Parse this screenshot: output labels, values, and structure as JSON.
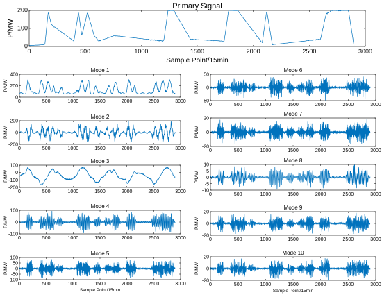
{
  "chart_data": [
    {
      "type": "line",
      "title": "Primary Signal",
      "xlabel": "Sample Point/15min",
      "ylabel": "P/MW",
      "xlim": [
        0,
        3000
      ],
      "ylim": [
        0,
        200
      ],
      "xticks": [
        0,
        500,
        1000,
        1500,
        2000,
        2500,
        3000
      ],
      "yticks": [
        0,
        100,
        200
      ],
      "series": [
        {
          "x": [
            0,
            140,
            170,
            200,
            400,
            440,
            470,
            520,
            580,
            620,
            760,
            1200,
            1240,
            1290,
            1440,
            1740,
            1780,
            1860,
            2080,
            2120,
            2170,
            2600,
            2650,
            2700,
            2850,
            2900
          ],
          "values": [
            5,
            10,
            190,
            120,
            30,
            190,
            60,
            190,
            60,
            30,
            60,
            30,
            200,
            200,
            40,
            30,
            200,
            200,
            20,
            200,
            10,
            40,
            180,
            200,
            200,
            0
          ]
        }
      ]
    },
    {
      "type": "line",
      "title": "Mode 1",
      "xlabel": "",
      "ylabel": "P/MW",
      "xlim": [
        0,
        3000
      ],
      "ylim": [
        0,
        400
      ],
      "xticks": [
        0,
        500,
        1000,
        1500,
        2000,
        2500,
        3000
      ],
      "yticks": [
        0,
        200,
        400
      ]
    },
    {
      "type": "line",
      "title": "Mode 2",
      "xlabel": "",
      "ylabel": "P/MW",
      "xlim": [
        0,
        3000
      ],
      "ylim": [
        -200,
        200
      ],
      "xticks": [
        0,
        500,
        1000,
        1500,
        2000,
        2500,
        3000
      ],
      "yticks": [
        -200,
        0,
        200
      ]
    },
    {
      "type": "line",
      "title": "Mode 3",
      "xlabel": "",
      "ylabel": "P/MW",
      "xlim": [
        0,
        3000
      ],
      "ylim": [
        -200,
        100
      ],
      "xticks": [
        0,
        500,
        1000,
        1500,
        2000,
        2500,
        3000
      ],
      "yticks": [
        -200,
        -100,
        0,
        100
      ]
    },
    {
      "type": "line",
      "title": "Mode 4",
      "xlabel": "",
      "ylabel": "P/MW",
      "xlim": [
        0,
        3000
      ],
      "ylim": [
        -100,
        100
      ],
      "xticks": [
        0,
        500,
        1000,
        1500,
        2000,
        2500,
        3000
      ],
      "yticks": [
        -100,
        0,
        100
      ]
    },
    {
      "type": "line",
      "title": "Mode 5",
      "xlabel": "Sample Point/15min",
      "ylabel": "P/MW",
      "xlim": [
        0,
        3000
      ],
      "ylim": [
        -100,
        100
      ],
      "xticks": [
        0,
        500,
        1000,
        1500,
        2000,
        2500,
        3000
      ],
      "yticks": [
        -100,
        -50,
        0,
        50,
        100
      ]
    },
    {
      "type": "line",
      "title": "Mode 6",
      "xlabel": "",
      "ylabel": "P/MW",
      "xlim": [
        0,
        3000
      ],
      "ylim": [
        -50,
        50
      ],
      "xticks": [
        0,
        500,
        1000,
        1500,
        2000,
        2500,
        3000
      ],
      "yticks": [
        -50,
        0,
        50
      ]
    },
    {
      "type": "line",
      "title": "Mode 7",
      "xlabel": "",
      "ylabel": "P/MW",
      "xlim": [
        0,
        3000
      ],
      "ylim": [
        -20,
        20
      ],
      "xticks": [
        0,
        500,
        1000,
        1500,
        2000,
        2500,
        3000
      ],
      "yticks": [
        -20,
        0,
        20
      ]
    },
    {
      "type": "line",
      "title": "Mode 8",
      "xlabel": "",
      "ylabel": "P/MW",
      "xlim": [
        0,
        3000
      ],
      "ylim": [
        -10,
        10
      ],
      "xticks": [
        0,
        500,
        1000,
        1500,
        2000,
        2500,
        3000
      ],
      "yticks": [
        -10,
        -5,
        0,
        5,
        10
      ]
    },
    {
      "type": "line",
      "title": "Mode 9",
      "xlabel": "",
      "ylabel": "P/MW",
      "xlim": [
        0,
        3000
      ],
      "ylim": [
        -20,
        20
      ],
      "xticks": [
        0,
        500,
        1000,
        1500,
        2000,
        2500,
        3000
      ],
      "yticks": [
        -20,
        0,
        20
      ]
    },
    {
      "type": "line",
      "title": "Mode 10",
      "xlabel": "Sample Point/15min",
      "ylabel": "P/MW",
      "xlim": [
        0,
        3000
      ],
      "ylim": [
        -20,
        20
      ],
      "xticks": [
        0,
        500,
        1000,
        1500,
        2000,
        2500,
        3000
      ],
      "yticks": [
        -20,
        0,
        20
      ]
    }
  ],
  "colors": {
    "line": "#0072BD",
    "axes": "#000000"
  }
}
